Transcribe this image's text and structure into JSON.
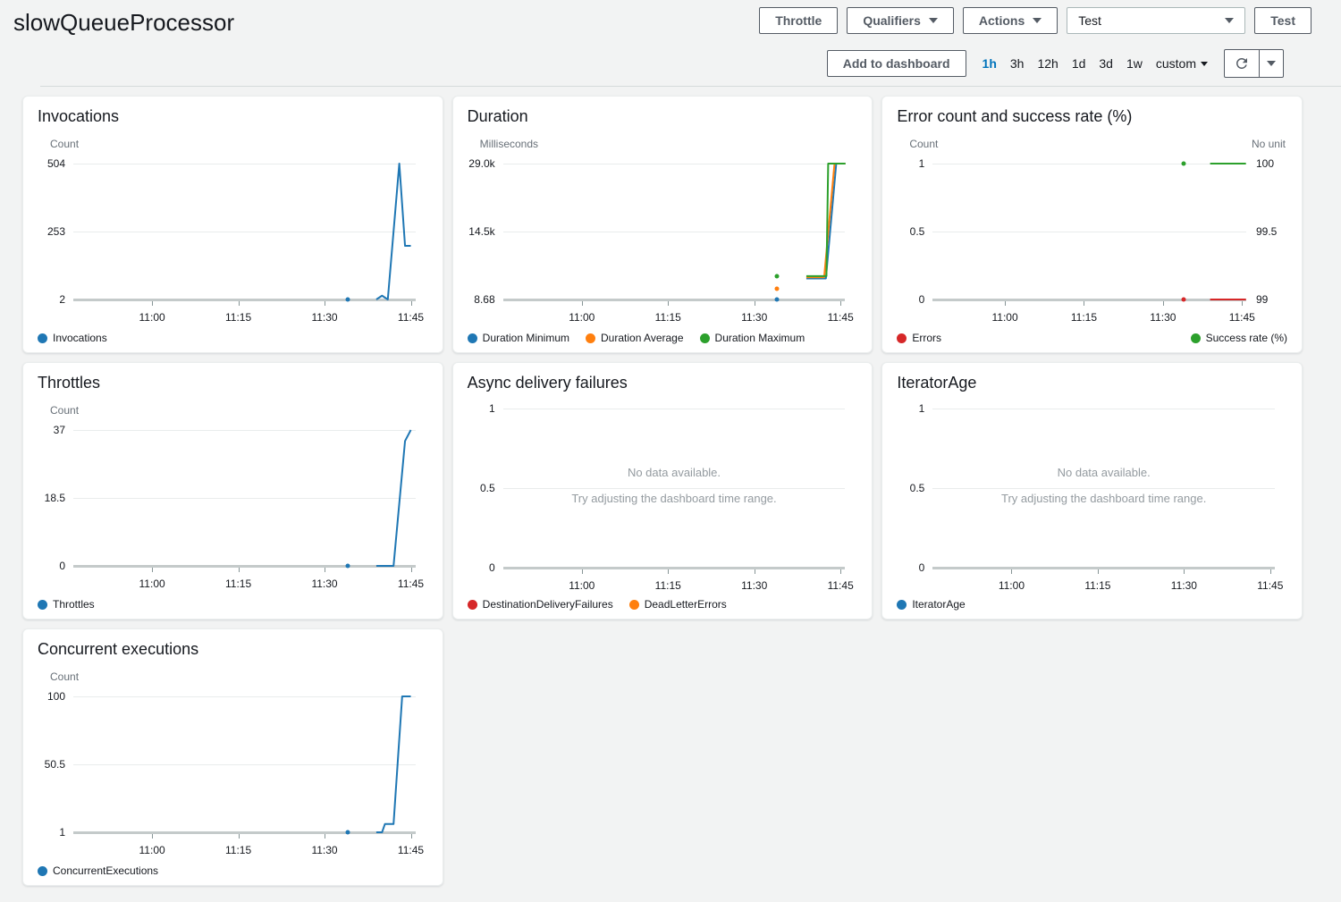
{
  "page": {
    "title": "slowQueueProcessor",
    "background": "#f2f3f3"
  },
  "header_actions": {
    "throttle_label": "Throttle",
    "qualifiers_label": "Qualifiers",
    "actions_label": "Actions",
    "test_select_value": "Test",
    "test_button_label": "Test"
  },
  "toolbar": {
    "add_to_dashboard_label": "Add to dashboard",
    "time_ranges": [
      {
        "label": "1h",
        "active": true
      },
      {
        "label": "3h",
        "active": false
      },
      {
        "label": "12h",
        "active": false
      },
      {
        "label": "1d",
        "active": false
      },
      {
        "label": "3d",
        "active": false
      },
      {
        "label": "1w",
        "active": false
      },
      {
        "label": "custom",
        "active": false,
        "has_caret": true
      }
    ]
  },
  "colors": {
    "blue": "#1f77b4",
    "orange": "#ff7f0e",
    "green": "#2ca02c",
    "red": "#d62728",
    "active_link": "#0073bb",
    "muted_text": "#687078",
    "no_data_text": "#949ba0"
  },
  "no_data": {
    "line1": "No data available.",
    "line2": "Try adjusting the dashboard time range."
  },
  "chart_data": [
    {
      "id": "invocations",
      "type": "line",
      "title": "Invocations",
      "unit_left": "Count",
      "unit_right": null,
      "y_ticks_left": [
        "504",
        "253",
        "2"
      ],
      "y_ticks_right": null,
      "ylim_left": [
        2,
        504
      ],
      "ylim_right": null,
      "x_ticks": [
        "11:00",
        "11:15",
        "11:30",
        "11:45"
      ],
      "x_range": [
        "10:46",
        "11:46"
      ],
      "no_data": false,
      "legend_split": false,
      "series": [
        {
          "name": "Invocations",
          "color": "#1f77b4",
          "axis": "left",
          "dots": [
            [
              "11:34",
              2
            ]
          ],
          "points": [
            [
              "11:39",
              2
            ],
            [
              "11:40",
              16
            ],
            [
              "11:41",
              2
            ],
            [
              "11:43",
              504
            ],
            [
              "11:44",
              200
            ],
            [
              "11:45",
              200
            ]
          ]
        }
      ]
    },
    {
      "id": "duration",
      "type": "line",
      "title": "Duration",
      "unit_left": "Milliseconds",
      "unit_right": null,
      "y_ticks_left": [
        "29.0k",
        "14.5k",
        "8.68"
      ],
      "y_ticks_right": null,
      "ylim_left": [
        8.68,
        29000
      ],
      "ylim_right": null,
      "x_ticks": [
        "11:00",
        "11:15",
        "11:30",
        "11:45"
      ],
      "x_range": [
        "10:46",
        "11:46"
      ],
      "no_data": false,
      "legend_split": false,
      "series": [
        {
          "name": "Duration Minimum",
          "color": "#1f77b4",
          "axis": "left",
          "dots": [
            [
              "11:34",
              8.68
            ]
          ],
          "points": [
            [
              "11:39",
              4500
            ],
            [
              "11:42.4",
              4500
            ],
            [
              "11:44.2",
              29000
            ],
            [
              "11:46",
              29000
            ]
          ]
        },
        {
          "name": "Duration Average",
          "color": "#ff7f0e",
          "axis": "left",
          "dots": [
            [
              "11:34",
              2300
            ]
          ],
          "points": [
            [
              "11:39",
              4750
            ],
            [
              "11:42.1",
              4750
            ],
            [
              "11:43.9",
              29000
            ],
            [
              "11:46",
              29000
            ]
          ]
        },
        {
          "name": "Duration Maximum",
          "color": "#2ca02c",
          "axis": "left",
          "dots": [
            [
              "11:34",
              5000
            ]
          ],
          "points": [
            [
              "11:39",
              5000
            ],
            [
              "11:42.5",
              5000
            ],
            [
              "11:42.8",
              29000
            ],
            [
              "11:46",
              29000
            ]
          ]
        }
      ]
    },
    {
      "id": "error-count-success-rate",
      "type": "line",
      "title": "Error count and success rate (%)",
      "unit_left": "Count",
      "unit_right": "No unit",
      "y_ticks_left": [
        "1",
        "0.5",
        "0"
      ],
      "y_ticks_right": [
        "100",
        "99.5",
        "99"
      ],
      "ylim_left": [
        0,
        1
      ],
      "ylim_right": [
        99,
        100
      ],
      "x_ticks": [
        "11:00",
        "11:15",
        "11:30",
        "11:45"
      ],
      "x_range": [
        "10:46",
        "11:46"
      ],
      "no_data": false,
      "legend_split": true,
      "series": [
        {
          "name": "Errors",
          "color": "#d62728",
          "axis": "left",
          "dots": [
            [
              "11:34",
              0
            ]
          ],
          "points": [
            [
              "11:39",
              0
            ],
            [
              "11:46",
              0
            ]
          ]
        },
        {
          "name": "Success rate (%)",
          "color": "#2ca02c",
          "axis": "right",
          "dots": [
            [
              "11:34",
              100
            ]
          ],
          "points": [
            [
              "11:39",
              100
            ],
            [
              "11:46",
              100
            ]
          ]
        }
      ]
    },
    {
      "id": "throttles",
      "type": "line",
      "title": "Throttles",
      "unit_left": "Count",
      "unit_right": null,
      "y_ticks_left": [
        "37",
        "18.5",
        "0"
      ],
      "y_ticks_right": null,
      "ylim_left": [
        0,
        37
      ],
      "ylim_right": null,
      "x_ticks": [
        "11:00",
        "11:15",
        "11:30",
        "11:45"
      ],
      "x_range": [
        "10:46",
        "11:46"
      ],
      "no_data": false,
      "legend_split": false,
      "series": [
        {
          "name": "Throttles",
          "color": "#1f77b4",
          "axis": "left",
          "dots": [
            [
              "11:34",
              0
            ]
          ],
          "points": [
            [
              "11:39",
              0
            ],
            [
              "11:42",
              0
            ],
            [
              "11:44",
              34
            ],
            [
              "11:45",
              37
            ]
          ]
        }
      ]
    },
    {
      "id": "async-delivery-failures",
      "type": "line",
      "title": "Async delivery failures",
      "unit_left": null,
      "unit_right": null,
      "y_ticks_left": [
        "1",
        "0.5",
        "0"
      ],
      "y_ticks_right": null,
      "ylim_left": [
        0,
        1
      ],
      "ylim_right": null,
      "x_ticks": [
        "11:00",
        "11:15",
        "11:30",
        "11:45"
      ],
      "x_range": [
        "10:46",
        "11:46"
      ],
      "no_data": true,
      "legend_split": false,
      "series": [
        {
          "name": "DestinationDeliveryFailures",
          "color": "#d62728",
          "axis": "left",
          "dots": [],
          "points": []
        },
        {
          "name": "DeadLetterErrors",
          "color": "#ff7f0e",
          "axis": "left",
          "dots": [],
          "points": []
        }
      ]
    },
    {
      "id": "iterator-age",
      "type": "line",
      "title": "IteratorAge",
      "unit_left": null,
      "unit_right": null,
      "y_ticks_left": [
        "1",
        "0.5",
        "0"
      ],
      "y_ticks_right": null,
      "ylim_left": [
        0,
        1
      ],
      "ylim_right": null,
      "x_ticks": [
        "11:00",
        "11:15",
        "11:30",
        "11:45"
      ],
      "x_range": [
        "10:46",
        "11:46"
      ],
      "no_data": true,
      "legend_split": false,
      "series": [
        {
          "name": "IteratorAge",
          "color": "#1f77b4",
          "axis": "left",
          "dots": [],
          "points": []
        }
      ]
    },
    {
      "id": "concurrent-executions",
      "type": "line",
      "title": "Concurrent executions",
      "unit_left": "Count",
      "unit_right": null,
      "y_ticks_left": [
        "100",
        "50.5",
        "1"
      ],
      "y_ticks_right": null,
      "ylim_left": [
        1,
        100
      ],
      "ylim_right": null,
      "x_ticks": [
        "11:00",
        "11:15",
        "11:30",
        "11:45"
      ],
      "x_range": [
        "10:46",
        "11:46"
      ],
      "no_data": false,
      "legend_split": false,
      "series": [
        {
          "name": "ConcurrentExecutions",
          "color": "#1f77b4",
          "axis": "left",
          "dots": [
            [
              "11:34",
              1
            ]
          ],
          "points": [
            [
              "11:39",
              1
            ],
            [
              "11:40",
              1
            ],
            [
              "11:40.5",
              7
            ],
            [
              "11:42",
              7
            ],
            [
              "11:43.5",
              100
            ],
            [
              "11:45",
              100
            ]
          ]
        }
      ]
    }
  ]
}
